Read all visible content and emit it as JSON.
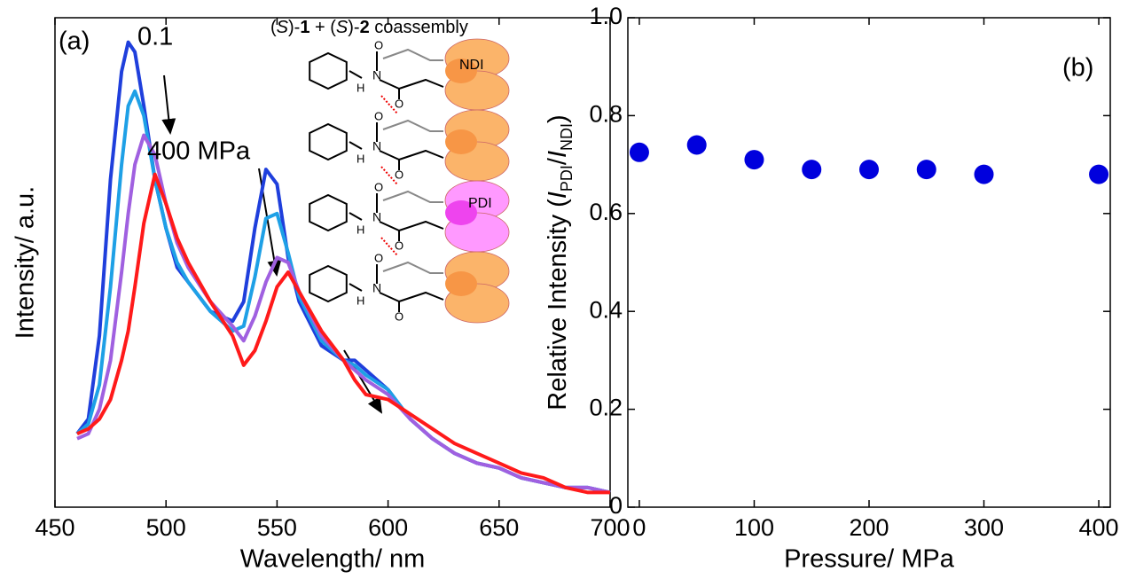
{
  "chart_data": [
    {
      "type": "line",
      "panel_label": "(a)",
      "xlabel": "Wavelength/ nm",
      "ylabel": "Intensity/ a.u.",
      "annotations": [
        "0.1",
        "400 MPa"
      ],
      "x": [
        460,
        465,
        470,
        475,
        480,
        483,
        486,
        490,
        495,
        500,
        505,
        510,
        520,
        530,
        535,
        540,
        545,
        550,
        555,
        560,
        570,
        580,
        585,
        590,
        600,
        610,
        620,
        630,
        640,
        650,
        660,
        670,
        680,
        690,
        700
      ],
      "series": [
        {
          "color": "#1f3fdc",
          "values": [
            0.15,
            0.18,
            0.35,
            0.67,
            0.89,
            0.95,
            0.93,
            0.82,
            0.67,
            0.57,
            0.49,
            0.46,
            0.4,
            0.38,
            0.42,
            0.57,
            0.69,
            0.66,
            0.51,
            0.42,
            0.33,
            0.3,
            0.3,
            0.28,
            0.24,
            0.18,
            0.14,
            0.11,
            0.09,
            0.08,
            0.06,
            0.05,
            0.04,
            0.04,
            0.03
          ]
        },
        {
          "color": "#1ea0e6",
          "values": [
            0.15,
            0.17,
            0.25,
            0.45,
            0.7,
            0.82,
            0.85,
            0.8,
            0.67,
            0.57,
            0.5,
            0.46,
            0.4,
            0.36,
            0.37,
            0.47,
            0.59,
            0.6,
            0.52,
            0.43,
            0.34,
            0.3,
            0.29,
            0.27,
            0.24,
            0.18,
            0.14,
            0.11,
            0.09,
            0.08,
            0.06,
            0.05,
            0.04,
            0.04,
            0.03
          ]
        },
        {
          "color": "#a060e0",
          "values": [
            0.14,
            0.15,
            0.2,
            0.3,
            0.48,
            0.6,
            0.7,
            0.76,
            0.72,
            0.62,
            0.54,
            0.49,
            0.42,
            0.37,
            0.34,
            0.39,
            0.46,
            0.51,
            0.5,
            0.44,
            0.35,
            0.3,
            0.28,
            0.26,
            0.23,
            0.18,
            0.14,
            0.11,
            0.09,
            0.08,
            0.06,
            0.05,
            0.04,
            0.04,
            0.03
          ]
        },
        {
          "color": "#ff1a1a",
          "values": [
            0.15,
            0.16,
            0.18,
            0.22,
            0.3,
            0.36,
            0.45,
            0.58,
            0.68,
            0.62,
            0.55,
            0.5,
            0.42,
            0.35,
            0.29,
            0.32,
            0.38,
            0.45,
            0.48,
            0.44,
            0.36,
            0.3,
            0.26,
            0.23,
            0.22,
            0.19,
            0.16,
            0.13,
            0.11,
            0.09,
            0.07,
            0.06,
            0.04,
            0.03,
            0.03
          ]
        }
      ],
      "xlim": [
        450,
        700
      ],
      "xticks": [
        450,
        500,
        550,
        600,
        650,
        700
      ],
      "ylim": [
        0,
        1
      ],
      "inset": {
        "title_parts": [
          "(",
          "S",
          ")-",
          "1",
          " + (",
          "S",
          ")-",
          "2",
          " coassembly"
        ],
        "unit_labels": [
          "NDI",
          "PDI"
        ],
        "atoms": [
          "H",
          "N",
          "O"
        ]
      }
    },
    {
      "type": "scatter",
      "panel_label": "(b)",
      "xlabel": "Pressure/ MPa",
      "ylabel_parts": [
        "Relative Intensity (",
        "I",
        "PDI",
        "/",
        "I",
        "NDI",
        ")"
      ],
      "color": "#0000dd",
      "x": [
        0,
        50,
        100,
        150,
        200,
        250,
        300,
        400
      ],
      "values": [
        0.725,
        0.74,
        0.71,
        0.69,
        0.69,
        0.69,
        0.68,
        0.68
      ],
      "xlim": [
        -10,
        410
      ],
      "xticks": [
        0,
        100,
        200,
        300,
        400
      ],
      "ylim": [
        0,
        1
      ],
      "yticks": [
        0,
        0.2,
        0.4,
        0.6,
        0.8,
        {
          "value": 1,
          "label": "1.0"
        }
      ]
    }
  ]
}
